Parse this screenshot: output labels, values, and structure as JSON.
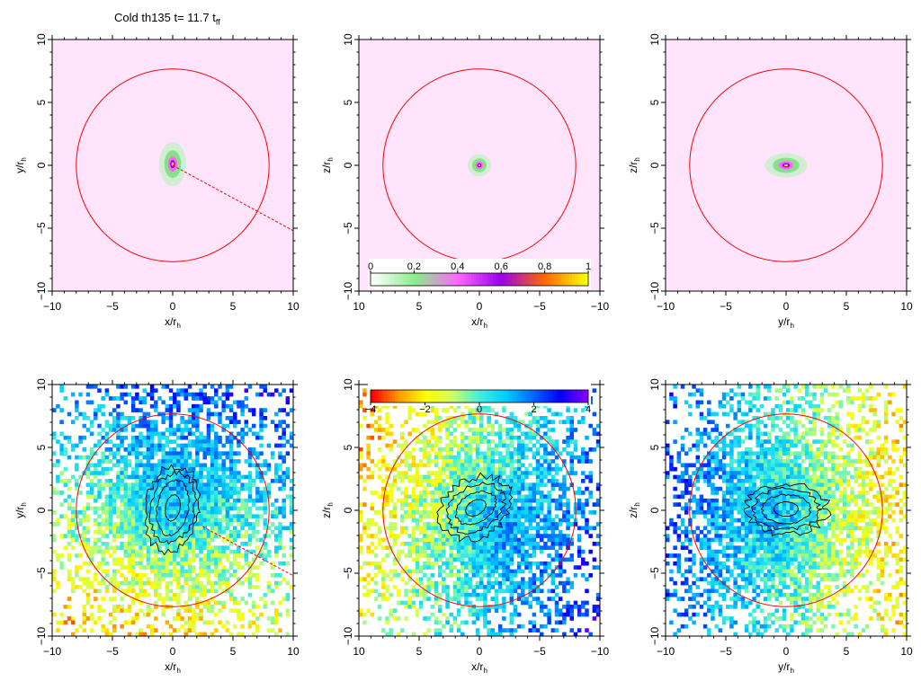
{
  "figure": {
    "title_prefix": "Cold th135 t= 11.7 t",
    "title_subscript": "ff"
  },
  "chart_data": [
    {
      "type": "heatmap",
      "panel": "top-left",
      "xlabel": "x/r",
      "xlabel_sub": "h",
      "ylabel": "y/r",
      "ylabel_sub": "h",
      "xlim": [
        -10,
        10
      ],
      "ylim": [
        -10,
        10
      ],
      "xticks": [
        -10,
        -5,
        0,
        5,
        10
      ],
      "yticks": [
        -10,
        -5,
        0,
        5,
        10
      ],
      "background_color": "#ffe4fc",
      "circle": {
        "center": [
          0,
          0
        ],
        "radius": 8,
        "color": "#ff0000"
      },
      "dashed_line": {
        "from": [
          0,
          0
        ],
        "to": [
          10,
          -5.2
        ],
        "color": "#ff0000"
      },
      "blob": {
        "center": [
          0,
          0.1
        ],
        "semi_axes": [
          0.7,
          1.1
        ]
      }
    },
    {
      "type": "heatmap",
      "panel": "top-middle",
      "xlabel": "x/r",
      "xlabel_sub": "h",
      "ylabel": "z/r",
      "ylabel_sub": "h",
      "xlim": [
        10,
        -10
      ],
      "ylim": [
        -10,
        10
      ],
      "xticks": [
        10,
        5,
        0,
        -5,
        -10
      ],
      "yticks": [
        -10,
        -5,
        0,
        5,
        10
      ],
      "background_color": "#ffe4fc",
      "circle": {
        "center": [
          0,
          0
        ],
        "radius": 8,
        "color": "#ff0000"
      },
      "blob": {
        "center": [
          0,
          0
        ],
        "semi_axes": [
          0.6,
          0.55
        ]
      },
      "colorbar": {
        "ticks": [
          "0",
          "0.2",
          "0.4",
          "0.6",
          "0.8",
          "1"
        ],
        "colors": [
          "#ffffff",
          "#88ee88",
          "#ff66ff",
          "#9900ee",
          "#ff6600",
          "#ffff00"
        ]
      }
    },
    {
      "type": "heatmap",
      "panel": "top-right",
      "xlabel": "y/r",
      "xlabel_sub": "h",
      "ylabel": "z/r",
      "ylabel_sub": "h",
      "xlim": [
        -10,
        10
      ],
      "ylim": [
        -10,
        10
      ],
      "xticks": [
        -10,
        -5,
        0,
        5,
        10
      ],
      "yticks": [
        -10,
        -5,
        0,
        5,
        10
      ],
      "background_color": "#ffe4fc",
      "circle": {
        "center": [
          0,
          0
        ],
        "radius": 8,
        "color": "#ff0000"
      },
      "blob": {
        "center": [
          0,
          0
        ],
        "semi_axes": [
          1.1,
          0.6
        ]
      }
    },
    {
      "type": "heatmap",
      "panel": "bottom-left",
      "xlabel": "x/r",
      "xlabel_sub": "h",
      "ylabel": "y/r",
      "ylabel_sub": "h",
      "xlim": [
        -10,
        10
      ],
      "ylim": [
        -10,
        10
      ],
      "xticks": [
        -10,
        -5,
        0,
        5,
        10
      ],
      "yticks": [
        -10,
        -5,
        0,
        5,
        10
      ],
      "circle": {
        "center": [
          0,
          0
        ],
        "radius": 8,
        "color": "#ff0000"
      },
      "dashed_line": {
        "from": [
          2.5,
          -1.3
        ],
        "to": [
          10,
          -5.2
        ],
        "color": "#ff0000"
      },
      "contours": {
        "center": [
          0,
          0.2
        ],
        "radii": [
          [
            0.6,
            1.1
          ],
          [
            1.3,
            2.3
          ],
          [
            1.8,
            3.0
          ],
          [
            2.3,
            3.6
          ]
        ],
        "angle_deg": 10
      },
      "field": {
        "gradient_direction": [
          0.25,
          1.0
        ],
        "center_shift": [
          0,
          0
        ]
      }
    },
    {
      "type": "heatmap",
      "panel": "bottom-middle",
      "xlabel": "x/r",
      "xlabel_sub": "h",
      "ylabel": "z/r",
      "ylabel_sub": "h",
      "xlim": [
        10,
        -10
      ],
      "ylim": [
        -10,
        10
      ],
      "xticks": [
        10,
        5,
        0,
        -5,
        -10
      ],
      "yticks": [
        -10,
        -5,
        0,
        5,
        10
      ],
      "circle": {
        "center": [
          0,
          0
        ],
        "radius": 8,
        "color": "#ff0000"
      },
      "contours": {
        "center": [
          0.3,
          0.2
        ],
        "radii": [
          [
            0.9,
            0.6
          ],
          [
            1.8,
            1.2
          ],
          [
            2.5,
            1.8
          ],
          [
            3.2,
            2.4
          ]
        ],
        "angle_deg": -30
      },
      "field": {
        "gradient_direction": [
          -1.0,
          -0.35
        ],
        "center_shift": [
          -1.5,
          -1.0
        ]
      },
      "colorbar": {
        "ticks": [
          "−4",
          "−2",
          "0",
          "2",
          "4"
        ],
        "colors": [
          "#ff0000",
          "#ff9900",
          "#ffff00",
          "#ccff66",
          "#44eedd",
          "#00ccff",
          "#0066ff",
          "#0000ff",
          "#8800ff"
        ]
      }
    },
    {
      "type": "heatmap",
      "panel": "bottom-right",
      "xlabel": "y/r",
      "xlabel_sub": "h",
      "ylabel": "z/r",
      "ylabel_sub": "h",
      "xlim": [
        -10,
        10
      ],
      "ylim": [
        -10,
        10
      ],
      "xticks": [
        -10,
        -5,
        0,
        5,
        10
      ],
      "yticks": [
        -10,
        -5,
        0,
        5,
        10
      ],
      "circle": {
        "center": [
          0,
          0
        ],
        "radius": 8,
        "color": "#ff0000"
      },
      "contours": {
        "center": [
          0,
          0.1
        ],
        "radii": [
          [
            1.0,
            0.6
          ],
          [
            2.0,
            1.2
          ],
          [
            2.8,
            1.7
          ],
          [
            3.4,
            2.1
          ]
        ],
        "angle_deg": 0
      },
      "field": {
        "gradient_direction": [
          -1.0,
          0.0
        ],
        "center_shift": [
          0,
          0
        ]
      }
    }
  ]
}
